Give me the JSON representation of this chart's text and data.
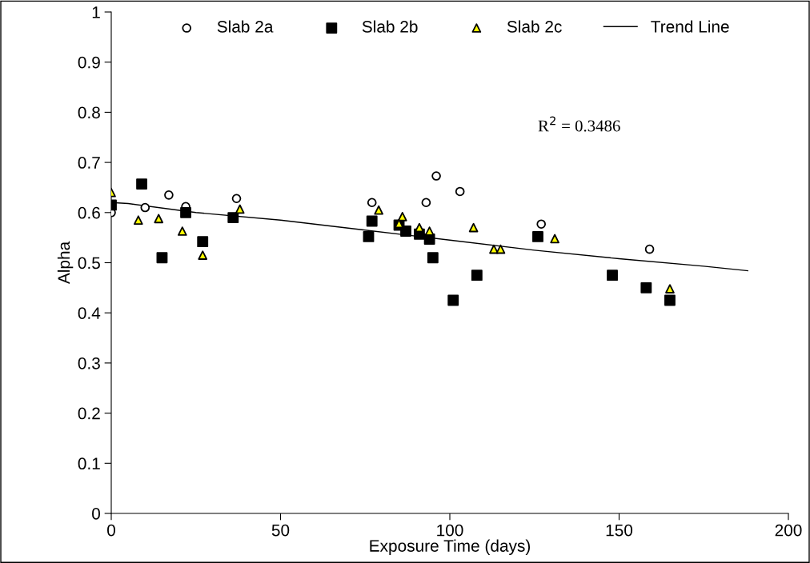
{
  "chart_data": {
    "type": "scatter",
    "xlabel": "Exposure Time (days)",
    "ylabel": "Alpha",
    "xlim": [
      0,
      200
    ],
    "xticks": [
      0,
      50,
      100,
      150,
      200
    ],
    "ylim": [
      0,
      1
    ],
    "yticks": [
      0,
      0.1,
      0.2,
      0.3,
      0.4,
      0.5,
      0.6,
      0.7,
      0.8,
      0.9,
      1
    ],
    "grid": false,
    "legend": "top",
    "annotations": [
      "R$^{2}$ = 0.3486"
    ],
    "series": [
      {
        "name": "Slab 2a",
        "marker": "circle",
        "color": "#ffffff",
        "x": [
          0,
          10,
          17,
          22,
          37,
          77,
          93,
          96,
          103,
          127,
          159
        ],
        "values": [
          0.6,
          0.61,
          0.635,
          0.612,
          0.628,
          0.62,
          0.62,
          0.673,
          0.642,
          0.577,
          0.527
        ]
      },
      {
        "name": "Slab 2b",
        "marker": "square",
        "color": "#000000",
        "x": [
          0,
          9,
          15,
          22,
          27,
          36,
          76,
          77,
          85,
          87,
          91,
          94,
          95,
          101,
          108,
          126,
          148,
          158,
          165
        ],
        "values": [
          0.615,
          0.657,
          0.51,
          0.6,
          0.542,
          0.59,
          0.552,
          0.583,
          0.575,
          0.563,
          0.557,
          0.547,
          0.51,
          0.425,
          0.475,
          0.552,
          0.475,
          0.45,
          0.425
        ]
      },
      {
        "name": "Slab 2c",
        "marker": "triangle",
        "color": "#ffff00",
        "x": [
          0,
          8,
          14,
          21,
          27,
          38,
          79,
          85,
          86,
          91,
          94,
          107,
          113,
          115,
          131,
          165
        ],
        "values": [
          0.64,
          0.585,
          0.588,
          0.563,
          0.515,
          0.607,
          0.605,
          0.578,
          0.592,
          0.57,
          0.563,
          0.57,
          0.527,
          0.527,
          0.548,
          0.448
        ]
      },
      {
        "name": "Trend Line",
        "type": "line",
        "marker": "none",
        "line_style": "solid",
        "color": "#000000",
        "x": [
          0,
          5,
          25,
          50,
          75,
          100,
          125,
          150,
          175,
          188
        ],
        "values": [
          0.62,
          0.618,
          0.6,
          0.585,
          0.565,
          0.545,
          0.525,
          0.508,
          0.493,
          0.484
        ]
      }
    ]
  }
}
